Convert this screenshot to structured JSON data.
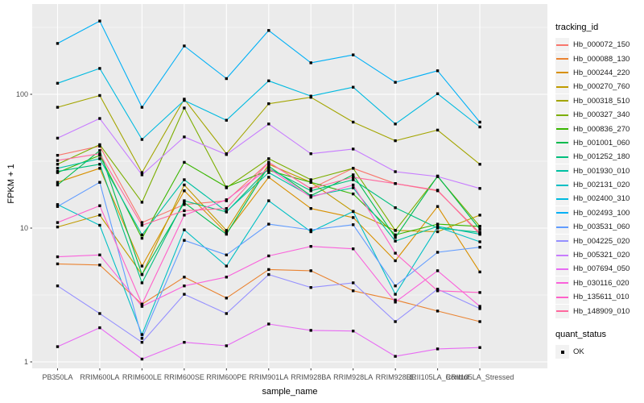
{
  "chart_data": {
    "type": "line",
    "title": "",
    "xlabel": "sample_name",
    "ylabel": "FPKM + 1",
    "y_scale": "log10",
    "y_ticks": [
      {
        "label": "1",
        "value": 1
      },
      {
        "label": "10",
        "value": 10
      },
      {
        "label": "100",
        "value": 100
      }
    ],
    "y_minor_ticks": [
      3.162,
      31.62,
      316.2
    ],
    "ylim": [
      0.95,
      400
    ],
    "grid": true,
    "panel_bg": "#EBEBEB",
    "grid_color": "#FFFFFF",
    "axis_text_color": "#4D4D4D",
    "tick_mark_color": "#333333",
    "point_color": "#000000",
    "point_shape": "square",
    "categories": [
      "PB350LA",
      "RRIM600LA",
      "RRIM600LE",
      "RRIM600SE",
      "RRIM600PE",
      "RRIM901LA",
      "RRIM928BA",
      "RRIM928LA",
      "RRIM928LE",
      "RRII105LA_Control",
      "RRII105LA_Stressed"
    ],
    "legend": {
      "title": "tracking_id",
      "position": "right"
    },
    "legend2": {
      "title": "quant_status",
      "items": [
        {
          "label": "OK",
          "marker": "black-square"
        }
      ]
    },
    "series": [
      {
        "name": "Hb_000072_150",
        "color": "#F8766D",
        "values": [
          35,
          41,
          11,
          15,
          16,
          31,
          19.7,
          28,
          21.5,
          19,
          9.2
        ]
      },
      {
        "name": "Hb_000088_130",
        "color": "#EA8331",
        "values": [
          5.4,
          5.3,
          2.7,
          4.3,
          3.0,
          4.9,
          4.8,
          3.4,
          2.9,
          2.4,
          2.0
        ]
      },
      {
        "name": "Hb_000244_220",
        "color": "#D89000",
        "values": [
          22,
          28,
          5.2,
          19,
          9.2,
          24,
          14,
          12,
          5.7,
          14.5,
          4.7
        ]
      },
      {
        "name": "Hb_000270_760",
        "color": "#C09B00",
        "values": [
          10.2,
          12.5,
          4.5,
          21,
          9.6,
          30,
          22,
          13.3,
          9.6,
          9.4,
          12.5
        ]
      },
      {
        "name": "Hb_000318_510",
        "color": "#A3A500",
        "values": [
          80,
          98,
          26,
          92,
          36,
          85,
          95,
          62,
          45,
          54,
          30
        ]
      },
      {
        "name": "Hb_000327_340",
        "color": "#7CAE00",
        "values": [
          30,
          42,
          15.6,
          79,
          20,
          33,
          23,
          28,
          9.6,
          24.3,
          10.3
        ]
      },
      {
        "name": "Hb_000836_270",
        "color": "#39B600",
        "values": [
          26,
          35,
          8.4,
          31,
          20.3,
          27,
          22,
          18,
          8.9,
          10.7,
          10.3
        ]
      },
      {
        "name": "Hb_001001_060",
        "color": "#00BB4E",
        "values": [
          21,
          38,
          4.5,
          15.5,
          9.0,
          29,
          17.5,
          25,
          8.5,
          24.5,
          9.8
        ]
      },
      {
        "name": "Hb_001252_180",
        "color": "#00BF7D",
        "values": [
          26.5,
          30,
          3.9,
          16,
          13.2,
          28,
          19,
          23,
          14.2,
          10.0,
          9.3
        ]
      },
      {
        "name": "Hb_001930_010",
        "color": "#00C1A3",
        "values": [
          28,
          33,
          8.9,
          23,
          13.3,
          26,
          17.3,
          20,
          8.0,
          10.3,
          9.0
        ]
      },
      {
        "name": "Hb_002131_020",
        "color": "#00BFC4",
        "values": [
          15,
          10.5,
          1.6,
          9.7,
          5.2,
          16,
          9.4,
          13.3,
          3.2,
          10.2,
          7.9
        ]
      },
      {
        "name": "Hb_002400_310",
        "color": "#00BAE0",
        "values": [
          121,
          156,
          46,
          90,
          64,
          126,
          97,
          113,
          60,
          101,
          57
        ]
      },
      {
        "name": "Hb_002493_100",
        "color": "#00B0F6",
        "values": [
          240,
          353,
          80,
          230,
          131,
          300,
          172,
          197,
          123,
          150,
          62
        ]
      },
      {
        "name": "Hb_003531_060",
        "color": "#619CFF",
        "values": [
          14.5,
          22,
          1.5,
          8.1,
          6.3,
          10.7,
          9.7,
          10.6,
          3.7,
          6.6,
          7.2
        ]
      },
      {
        "name": "Hb_004225_020",
        "color": "#9590FF",
        "values": [
          3.7,
          2.3,
          1.4,
          3.2,
          2.3,
          4.5,
          3.6,
          3.9,
          2.0,
          3.5,
          2.5
        ]
      },
      {
        "name": "Hb_005321_020",
        "color": "#C77CFF",
        "values": [
          47,
          66,
          25,
          48,
          35.5,
          60,
          36,
          39,
          26.4,
          24.3,
          19.8
        ]
      },
      {
        "name": "Hb_007694_050",
        "color": "#E76BF3",
        "values": [
          1.3,
          1.8,
          1.05,
          1.4,
          1.32,
          1.92,
          1.72,
          1.7,
          1.1,
          1.25,
          1.28
        ]
      },
      {
        "name": "Hb_030116_020",
        "color": "#FA62DB",
        "values": [
          6.1,
          6.3,
          2.6,
          3.7,
          4.3,
          6.2,
          7.3,
          7.0,
          2.8,
          4.8,
          2.6
        ]
      },
      {
        "name": "Hb_135611_010",
        "color": "#FF61C9",
        "values": [
          11,
          14.7,
          2.7,
          12.5,
          16.3,
          28,
          17,
          21,
          6.5,
          3.4,
          3.3
        ]
      },
      {
        "name": "Hb_148909_010",
        "color": "#FF689E",
        "values": [
          32,
          36,
          10.5,
          13.5,
          14,
          31,
          19.7,
          24,
          21.5,
          19.2,
          9.0
        ]
      }
    ]
  }
}
